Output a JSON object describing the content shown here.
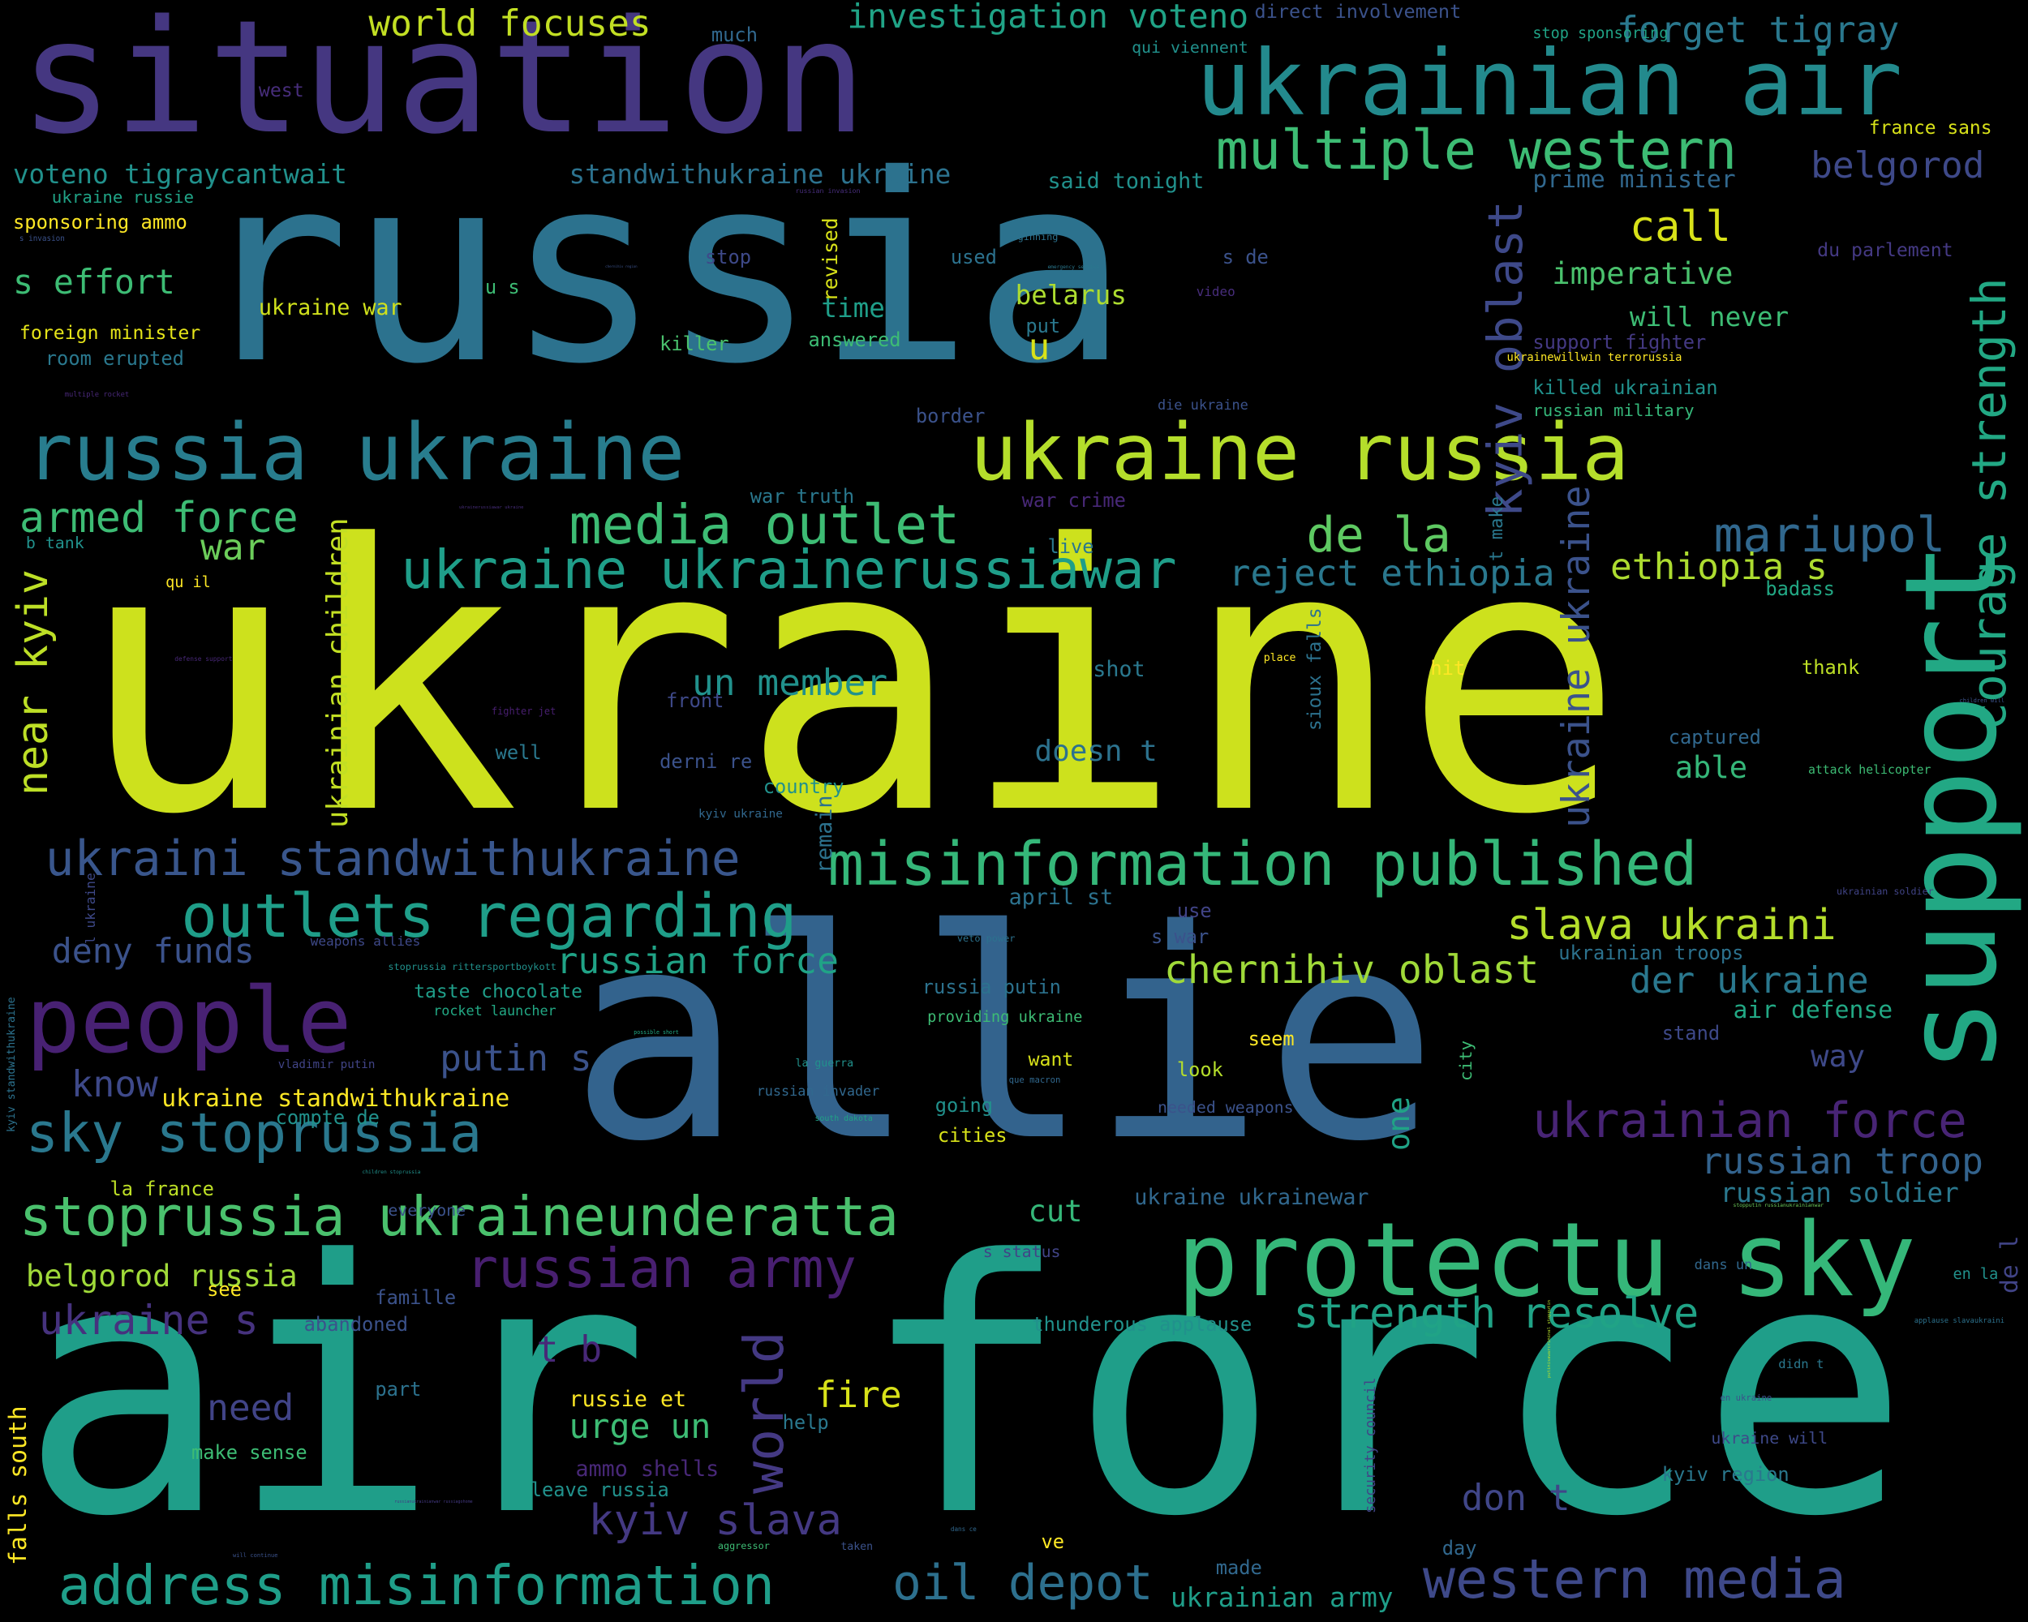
{
  "wordcloud": {
    "background": "#000000",
    "words": [
      {
        "text": "ukraine",
        "color": "#cde11d"
      },
      {
        "text": "russia",
        "color": "#2c728e"
      },
      {
        "text": "allie",
        "color": "#33638d"
      },
      {
        "text": "air force",
        "color": "#1f9e89"
      },
      {
        "text": "situation",
        "color": "#453781"
      },
      {
        "text": "russia ukraine",
        "color": "#287d8e"
      },
      {
        "text": "ukraine russia",
        "color": "#b5de2b"
      },
      {
        "text": "ukrainian air",
        "color": "#238a8d"
      },
      {
        "text": "protectu sky",
        "color": "#35b779"
      },
      {
        "text": "support",
        "color": "#22a884"
      },
      {
        "text": "people",
        "color": "#482173"
      },
      {
        "text": "misinformation published",
        "color": "#35b779"
      },
      {
        "text": "multiple western",
        "color": "#3dbc74"
      },
      {
        "text": "media outlet",
        "color": "#3dbc74"
      },
      {
        "text": "outlets regarding",
        "color": "#1f9e89"
      },
      {
        "text": "address misinformation",
        "color": "#1f9e89"
      },
      {
        "text": "stoprussia ukraineunderatta",
        "color": "#4ac16d"
      },
      {
        "text": "western media",
        "color": "#3e4989"
      },
      {
        "text": "ukraine ukrainerussiawar",
        "color": "#1f9e89"
      },
      {
        "text": "sky stoprussia",
        "color": "#2a788e"
      },
      {
        "text": "ukraini standwithukraine",
        "color": "#39568c"
      },
      {
        "text": "russian army",
        "color": "#481f70"
      },
      {
        "text": "world",
        "color": "#443983"
      },
      {
        "text": "kyiv slava",
        "color": "#443983"
      },
      {
        "text": "oil depot",
        "color": "#2d708e"
      },
      {
        "text": "ukrainian force",
        "color": "#482475"
      },
      {
        "text": "strength resolve",
        "color": "#20a386"
      },
      {
        "text": "courage strength",
        "color": "#22a884"
      },
      {
        "text": "mariupol",
        "color": "#31688e"
      },
      {
        "text": "de la",
        "color": "#5ec962"
      },
      {
        "text": "armed force",
        "color": "#3dbc74"
      },
      {
        "text": "slava ukraini",
        "color": "#b5de2b"
      },
      {
        "text": "chernihiv oblast",
        "color": "#a0da39"
      },
      {
        "text": "russian force",
        "color": "#20a386"
      },
      {
        "text": "der ukraine",
        "color": "#2a788e"
      },
      {
        "text": "russian troop",
        "color": "#33638d"
      },
      {
        "text": "kyiv oblast",
        "color": "#3e4989"
      },
      {
        "text": "ukraine ukraine",
        "color": "#3b528b"
      },
      {
        "text": "forget tigray",
        "color": "#2a788e"
      },
      {
        "text": "world focuses",
        "color": "#c2df23"
      },
      {
        "text": "investigation voteno",
        "color": "#20a386"
      },
      {
        "text": "call",
        "color": "#d8e219"
      },
      {
        "text": "belgorod",
        "color": "#3e4989"
      },
      {
        "text": "reject ethiopia",
        "color": "#2a788e"
      },
      {
        "text": "ethiopia s",
        "color": "#addc30"
      },
      {
        "text": "un member",
        "color": "#21918c"
      },
      {
        "text": "war",
        "color": "#6ccd5a"
      },
      {
        "text": "near kyiv",
        "color": "#bddf26"
      },
      {
        "text": "putin s",
        "color": "#3b528b"
      },
      {
        "text": "know",
        "color": "#3e4989"
      },
      {
        "text": "need",
        "color": "#414487"
      },
      {
        "text": "ukraine s",
        "color": "#46327e"
      },
      {
        "text": "t b",
        "color": "#482878"
      },
      {
        "text": "fire",
        "color": "#d8e219"
      },
      {
        "text": "urge un",
        "color": "#3dbc74"
      },
      {
        "text": "don t",
        "color": "#404688"
      },
      {
        "text": "deny funds",
        "color": "#3b528b"
      },
      {
        "text": "belgorod russia",
        "color": "#a0da39"
      },
      {
        "text": "s effort",
        "color": "#3dbc74"
      },
      {
        "text": "voteno tigraycantwait",
        "color": "#21918c"
      },
      {
        "text": "standwithukraine ukraine",
        "color": "#2c728e"
      },
      {
        "text": "imperative",
        "color": "#4ac16d"
      },
      {
        "text": "will never",
        "color": "#3dbc74"
      },
      {
        "text": "u",
        "color": "#d8e219"
      },
      {
        "text": "able",
        "color": "#35b779"
      },
      {
        "text": "way",
        "color": "#3e4989"
      },
      {
        "text": "one",
        "color": "#20a386"
      },
      {
        "text": "cut",
        "color": "#35b779"
      },
      {
        "text": "belarus",
        "color": "#addc30"
      },
      {
        "text": "time",
        "color": "#1f9e89"
      },
      {
        "text": "doesn t",
        "color": "#2c728e"
      },
      {
        "text": "air defense",
        "color": "#22a884"
      },
      {
        "text": "russian soldier",
        "color": "#2a788e"
      },
      {
        "text": "prime minister",
        "color": "#31688e"
      },
      {
        "text": "ukraine standwithukraine",
        "color": "#fde725"
      },
      {
        "text": "ukrainian children",
        "color": "#c2df23"
      },
      {
        "text": "ukrainian army",
        "color": "#1f9e89"
      },
      {
        "text": "sioux falls",
        "color": "#2c728e"
      },
      {
        "text": "ukraine war",
        "color": "#d0e11c"
      },
      {
        "text": "foreign minister",
        "color": "#e5e419"
      },
      {
        "text": "sponsoring ammo",
        "color": "#fde725"
      },
      {
        "text": "room erupted",
        "color": "#2a788e"
      },
      {
        "text": "ukraine russie",
        "color": "#20a386"
      },
      {
        "text": "s invasion",
        "color": "#3b528b"
      },
      {
        "text": "west",
        "color": "#472d7b"
      },
      {
        "text": "much",
        "color": "#31688e"
      },
      {
        "text": "direct involvement",
        "color": "#3b528b"
      },
      {
        "text": "stop sponsoring",
        "color": "#20a386"
      },
      {
        "text": "qui viennent",
        "color": "#21918c"
      },
      {
        "text": "france sans",
        "color": "#d8e219"
      },
      {
        "text": "du parlement",
        "color": "#443983"
      },
      {
        "text": "said tonight",
        "color": "#21918c"
      },
      {
        "text": "russian invasion",
        "color": "#472d7b"
      },
      {
        "text": "revised",
        "color": "#d8e219"
      },
      {
        "text": "stop",
        "color": "#3e4989"
      },
      {
        "text": "beginning",
        "color": "#2c728e"
      },
      {
        "text": "used",
        "color": "#2c728e"
      },
      {
        "text": "emergency service",
        "color": "#2a788e"
      },
      {
        "text": "s de",
        "color": "#3b528b"
      },
      {
        "text": "chernihiv region",
        "color": "#3b528b"
      },
      {
        "text": "u s",
        "color": "#3dbc74"
      },
      {
        "text": "video",
        "color": "#472d7b"
      },
      {
        "text": "put",
        "color": "#2a788e"
      },
      {
        "text": "killer",
        "color": "#4ac16d"
      },
      {
        "text": "answered",
        "color": "#3dbc74"
      },
      {
        "text": "support fighter",
        "color": "#443983"
      },
      {
        "text": "ukrainewillwin terrorussia",
        "color": "#fde725"
      },
      {
        "text": "killed ukrainian",
        "color": "#21918c"
      },
      {
        "text": "russian military",
        "color": "#35b779"
      },
      {
        "text": "multiple rocket",
        "color": "#482878"
      },
      {
        "text": "border",
        "color": "#3b528b"
      },
      {
        "text": "die ukraine",
        "color": "#3b528b"
      },
      {
        "text": "war truth",
        "color": "#2a788e"
      },
      {
        "text": "war crime",
        "color": "#482878"
      },
      {
        "text": "ukrainerussiawar ukraine",
        "color": "#472d7b"
      },
      {
        "text": "t make",
        "color": "#2a788e"
      },
      {
        "text": "b tank",
        "color": "#21918c"
      },
      {
        "text": "qu il",
        "color": "#fde725"
      },
      {
        "text": "live",
        "color": "#2a788e"
      },
      {
        "text": "badass",
        "color": "#22a884"
      },
      {
        "text": "defense support",
        "color": "#482878"
      },
      {
        "text": "shot",
        "color": "#2a788e"
      },
      {
        "text": "place",
        "color": "#fde725"
      },
      {
        "text": "hit",
        "color": "#fde725"
      },
      {
        "text": "thank",
        "color": "#bddf26"
      },
      {
        "text": "front",
        "color": "#3e4989"
      },
      {
        "text": "fighter jet",
        "color": "#481f70"
      },
      {
        "text": "remain",
        "color": "#2c728e"
      },
      {
        "text": "children will",
        "color": "#3b528b"
      },
      {
        "text": "well",
        "color": "#2a788e"
      },
      {
        "text": "derni re",
        "color": "#3b528b"
      },
      {
        "text": "country",
        "color": "#21918c"
      },
      {
        "text": "captured",
        "color": "#31688e"
      },
      {
        "text": "attack helicopter",
        "color": "#3dbc74"
      },
      {
        "text": "kyiv ukraine",
        "color": "#31688e"
      },
      {
        "text": "april st",
        "color": "#2c728e"
      },
      {
        "text": "ukrainian soldier",
        "color": "#414487"
      },
      {
        "text": "l ukraine",
        "color": "#3e4989"
      },
      {
        "text": "use",
        "color": "#414487"
      },
      {
        "text": "weapons allies",
        "color": "#3e4989"
      },
      {
        "text": "veto power",
        "color": "#2c728e"
      },
      {
        "text": "s war",
        "color": "#3b528b"
      },
      {
        "text": "ukrainian troops",
        "color": "#2c728e"
      },
      {
        "text": "stoprussia rittersportboykott",
        "color": "#21918c"
      },
      {
        "text": "taste chocolate",
        "color": "#1f9e89"
      },
      {
        "text": "rocket launcher",
        "color": "#22a884"
      },
      {
        "text": "russia putin",
        "color": "#2c728e"
      },
      {
        "text": "providing ukraine",
        "color": "#3dbc74"
      },
      {
        "text": "possible short",
        "color": "#22a884"
      },
      {
        "text": "seem",
        "color": "#fde725"
      },
      {
        "text": "stand",
        "color": "#3e4989"
      },
      {
        "text": "kyiv standwithukraine",
        "color": "#2c728e"
      },
      {
        "text": "vladimir putin",
        "color": "#414487"
      },
      {
        "text": "la guerra",
        "color": "#21918c"
      },
      {
        "text": "want",
        "color": "#d8e219"
      },
      {
        "text": "city",
        "color": "#3dbc74"
      },
      {
        "text": "look",
        "color": "#b5de2b"
      },
      {
        "text": "compte de",
        "color": "#21918c"
      },
      {
        "text": "russian invader",
        "color": "#31688e"
      },
      {
        "text": "que macron",
        "color": "#31688e"
      },
      {
        "text": "going",
        "color": "#21918c"
      },
      {
        "text": "needed weapons",
        "color": "#3b528b"
      },
      {
        "text": "south dakota",
        "color": "#20a386"
      },
      {
        "text": "cities",
        "color": "#d8e219"
      },
      {
        "text": "la france",
        "color": "#bddf26"
      },
      {
        "text": "children stoprussia",
        "color": "#21918c"
      },
      {
        "text": "de l",
        "color": "#414487"
      },
      {
        "text": "ukraine ukrainewar",
        "color": "#31688e"
      },
      {
        "text": "stopputin russianukrainianwar",
        "color": "#6ccd5a"
      },
      {
        "text": "everyone",
        "color": "#3b528b"
      },
      {
        "text": "s status",
        "color": "#414487"
      },
      {
        "text": "dans un",
        "color": "#31688e"
      },
      {
        "text": "en la",
        "color": "#21918c"
      },
      {
        "text": "see",
        "color": "#fde725"
      },
      {
        "text": "famille",
        "color": "#3b528b"
      },
      {
        "text": "abandoned",
        "color": "#3b528b"
      },
      {
        "text": "thunderous applause",
        "color": "#21918c"
      },
      {
        "text": "applause slavaukraini",
        "color": "#2c728e"
      },
      {
        "text": "falls south",
        "color": "#fde725"
      },
      {
        "text": "putinisawarcriminal stopputin",
        "color": "#b5de2b"
      },
      {
        "text": "didn t",
        "color": "#2a788e"
      },
      {
        "text": "part",
        "color": "#2c728e"
      },
      {
        "text": "russie et",
        "color": "#fde725"
      },
      {
        "text": "en ukraine",
        "color": "#3b528b"
      },
      {
        "text": "help",
        "color": "#2a788e"
      },
      {
        "text": "security council",
        "color": "#414487"
      },
      {
        "text": "ukraine will",
        "color": "#3e4989"
      },
      {
        "text": "make sense",
        "color": "#3dbc74"
      },
      {
        "text": "kyiv region",
        "color": "#2a788e"
      },
      {
        "text": "ammo shells",
        "color": "#482878"
      },
      {
        "text": "leave russia",
        "color": "#21918c"
      },
      {
        "text": "russianukrainianwar russiagohome",
        "color": "#443983"
      },
      {
        "text": "dans ce",
        "color": "#31688e"
      },
      {
        "text": "ve",
        "color": "#fde725"
      },
      {
        "text": "aggressor",
        "color": "#3dbc74"
      },
      {
        "text": "taken",
        "color": "#3b528b"
      },
      {
        "text": "day",
        "color": "#31688e"
      },
      {
        "text": "will continue",
        "color": "#3b528b"
      },
      {
        "text": "made",
        "color": "#31688e"
      },
      {
        "text": "everything possible",
        "color": "#482878"
      }
    ]
  }
}
